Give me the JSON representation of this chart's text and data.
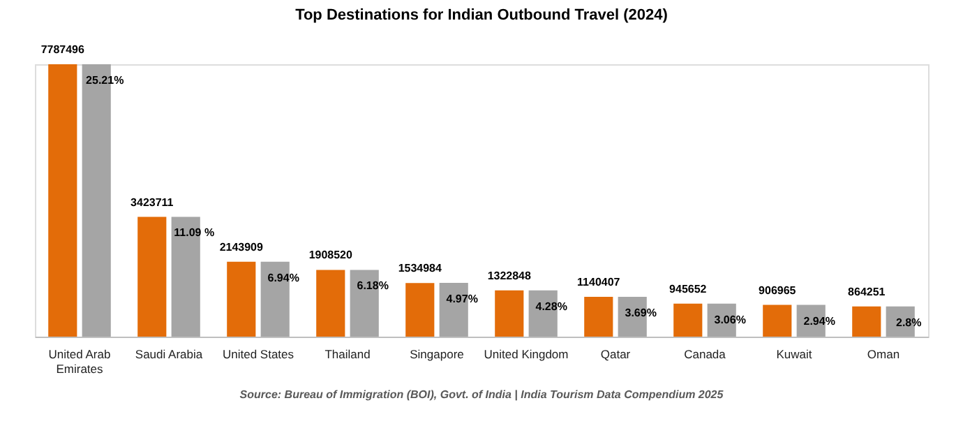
{
  "chart_data": {
    "type": "bar",
    "title": "Top Destinations for Indian Outbound Travel (2024)",
    "categories": [
      "United Arab Emirates",
      "Saudi Arabia",
      "United States",
      "Thailand",
      "Singapore",
      "United Kingdom",
      "Qatar",
      "Canada",
      "Kuwait",
      "Oman"
    ],
    "series": [
      {
        "color": "#e36c09",
        "values": [
          7787496,
          3423711,
          2143909,
          1908520,
          1534984,
          1322848,
          1140407,
          945652,
          906965,
          864251
        ]
      },
      {
        "color": "#a5a5a5",
        "axis": "y2",
        "values": [
          25.21,
          11.09,
          6.94,
          6.18,
          4.97,
          4.28,
          3.69,
          3.06,
          2.94,
          2.8
        ],
        "value_labels": [
          "25.21%",
          "11.09 %",
          "6.94%",
          "6.18%",
          "4.97%",
          "4.28%",
          "3.69%",
          "3.06%",
          "2.94%",
          "2.8%"
        ]
      }
    ],
    "ylim": [
      0,
      7787496
    ],
    "y2lim": [
      0,
      25.21
    ],
    "data_labels": true,
    "tick_labels": "x",
    "annotations": [
      "Source: Bureau of Immigration (BOI), Govt. of India | India Tourism Data Compendium 2025"
    ]
  }
}
